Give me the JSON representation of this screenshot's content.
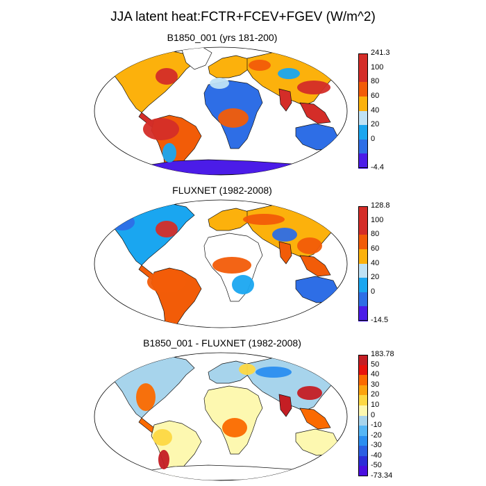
{
  "title": "JJA latent heat:FCTR+FCEV+FGEV (W/m^2)",
  "panels": [
    {
      "id": "model",
      "title": "B1850_001 (yrs 181-200)",
      "colorbar": {
        "labels": [
          "241.3",
          "100",
          "80",
          "60",
          "40",
          "20",
          "0",
          "-4.4"
        ],
        "colors": [
          "#d42d28",
          "#d42d28",
          "#f25c08",
          "#fcb10c",
          "#bfe2f5",
          "#1aa6f0",
          "#2e6ee6",
          "#4b1ce8"
        ]
      }
    },
    {
      "id": "obs",
      "title": "FLUXNET (1982-2008)",
      "colorbar": {
        "labels": [
          "128.8",
          "100",
          "80",
          "60",
          "40",
          "20",
          "0",
          "-14.5"
        ],
        "colors": [
          "#d42d28",
          "#d42d28",
          "#f25c08",
          "#fcb10c",
          "#bfe2f5",
          "#1aa6f0",
          "#2e6ee6",
          "#4b1ce8"
        ]
      }
    },
    {
      "id": "diff",
      "title": "B1850_001 - FLUXNET (1982-2008)",
      "colorbar": {
        "labels": [
          "183.78",
          "50",
          "40",
          "30",
          "20",
          "10",
          "0",
          "-10",
          "-20",
          "-30",
          "-40",
          "-50",
          "-73.34"
        ],
        "colors": [
          "#c41e24",
          "#e8130c",
          "#fb6a00",
          "#fca30e",
          "#fdd843",
          "#fdf8b0",
          "#a7d4ec",
          "#55b6f5",
          "#2a8ef0",
          "#2a5fe3",
          "#2b2ed8",
          "#4a0fe0"
        ]
      }
    }
  ]
}
